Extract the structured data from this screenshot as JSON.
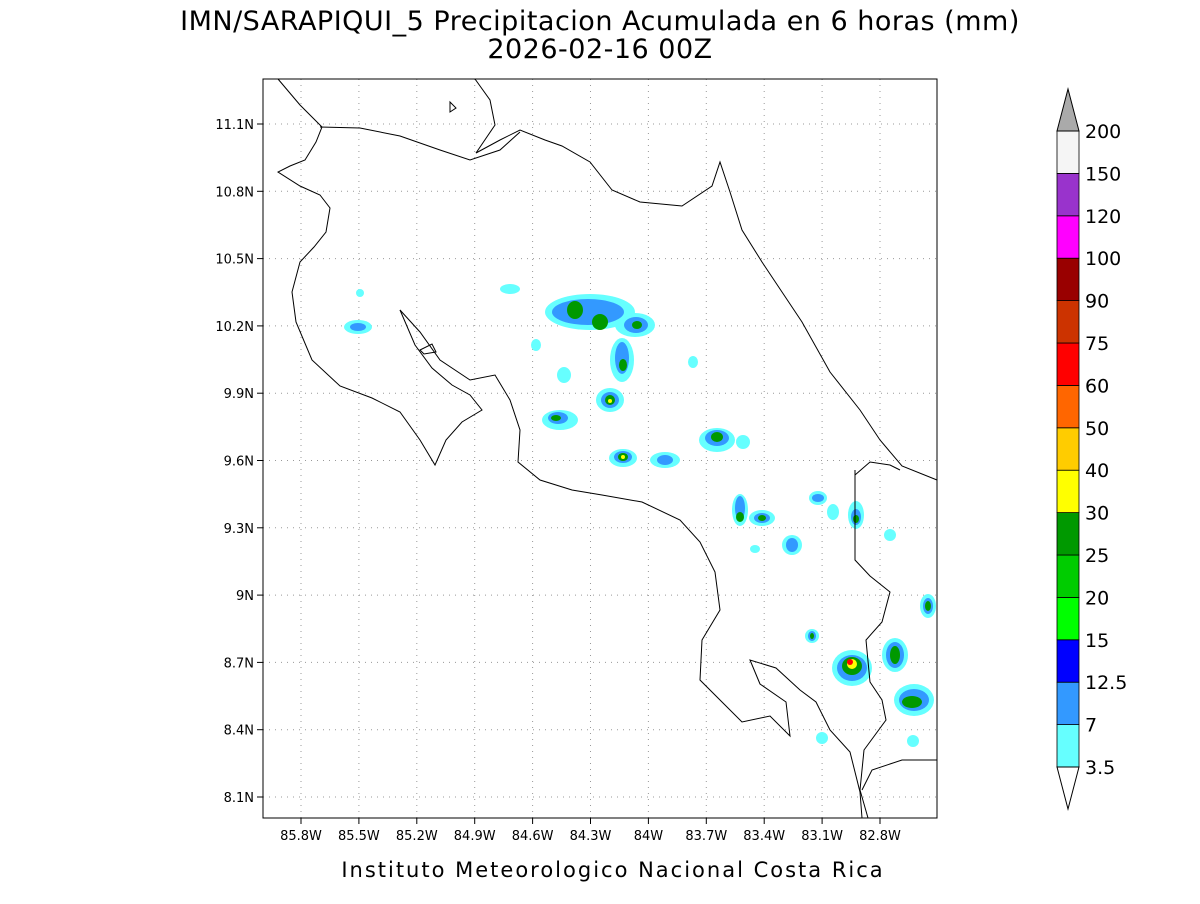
{
  "header": {
    "title": "IMN/SARAPIQUI_5 Precipitacion Acumulada en 6 horas (mm)",
    "subtitle": "2026-02-16 00Z"
  },
  "map": {
    "x_labels": [
      "85.8W",
      "85.5W",
      "85.2W",
      "84.9W",
      "84.6W",
      "84.3W",
      "84W",
      "83.7W",
      "83.4W",
      "83.1W",
      "82.8W"
    ],
    "y_labels": [
      "11.1N",
      "10.8N",
      "10.5N",
      "10.2N",
      "9.9N",
      "9.6N",
      "9.3N",
      "9N",
      "8.7N",
      "8.4N",
      "8.1N"
    ]
  },
  "colorbar": {
    "labels": [
      "3.5",
      "7",
      "12.5",
      "15",
      "20",
      "25",
      "30",
      "40",
      "50",
      "60",
      "75",
      "90",
      "100",
      "120",
      "150",
      "200"
    ],
    "colors": [
      "#66ffff",
      "#3399ff",
      "#0000ff",
      "#00ff00",
      "#00cc00",
      "#009900",
      "#ffff00",
      "#ffcc00",
      "#ff6600",
      "#ff0000",
      "#cc3300",
      "#990000",
      "#ff00ff",
      "#9933cc",
      "#f5f5f5"
    ],
    "under_color": "#ffffff",
    "over_color": "#aaaaaa"
  },
  "footer": {
    "text": "Instituto Meteorologico Nacional Costa Rica"
  }
}
